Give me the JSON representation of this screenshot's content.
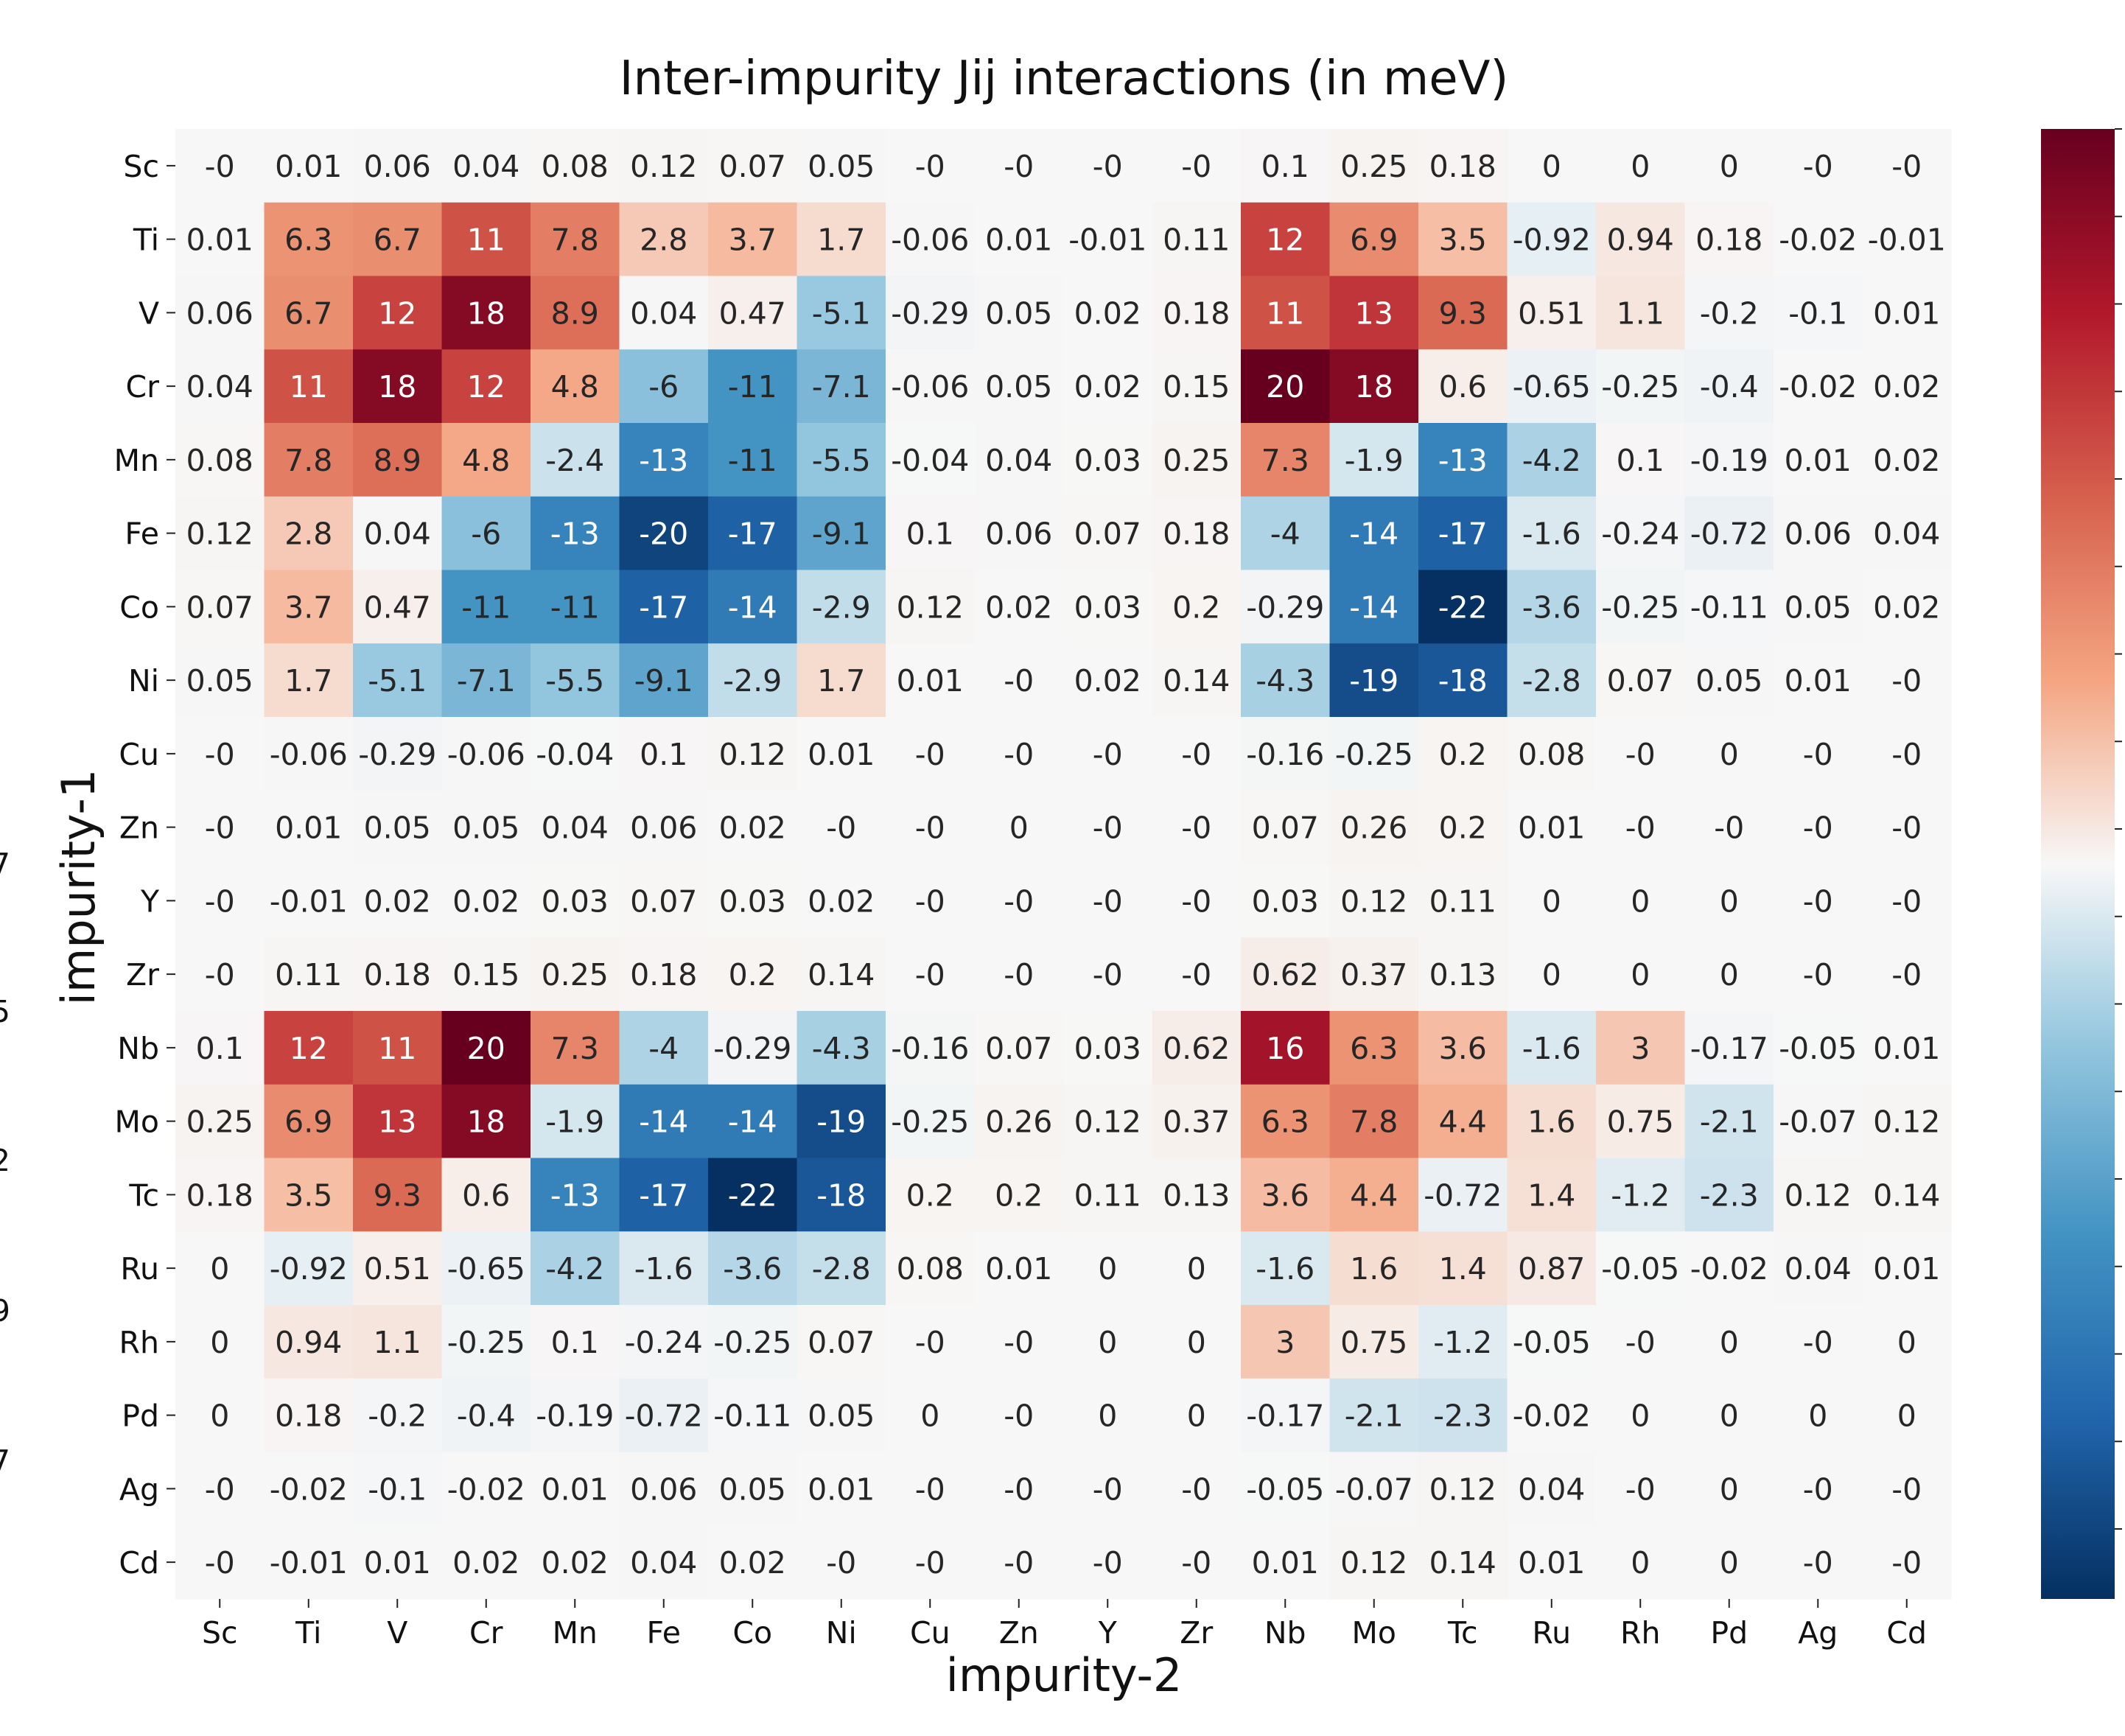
{
  "chart_data": {
    "type": "heatmap",
    "title": "Inter-impurity Jij interactions (in meV)",
    "xlabel": "impurity-2",
    "ylabel": "impurity-1",
    "x_categories": [
      "Sc",
      "Ti",
      "V",
      "Cr",
      "Mn",
      "Fe",
      "Co",
      "Ni",
      "Cu",
      "Zn",
      "Y",
      "Zr",
      "Nb",
      "Mo",
      "Tc",
      "Ru",
      "Rh",
      "Pd",
      "Ag",
      "Cd"
    ],
    "y_categories": [
      "Sc",
      "Ti",
      "V",
      "Cr",
      "Mn",
      "Fe",
      "Co",
      "Ni",
      "Cu",
      "Zn",
      "Y",
      "Zr",
      "Nb",
      "Mo",
      "Tc",
      "Ru",
      "Rh",
      "Pd",
      "Ag",
      "Cd"
    ],
    "colormap": "RdBu_r",
    "color_range": [
      -22,
      20
    ],
    "colorbar": "right, tick labels cropped",
    "cropped_tick_fragments": [
      "7",
      "5",
      "2",
      "9",
      "7"
    ],
    "values": [
      [
        "-0",
        "0.01",
        "0.06",
        "0.04",
        "0.08",
        "0.12",
        "0.07",
        "0.05",
        "-0",
        "-0",
        "-0",
        "-0",
        "0.1",
        "0.25",
        "0.18",
        "0",
        "0",
        "0",
        "-0",
        "-0"
      ],
      [
        "0.01",
        "6.3",
        "6.7",
        "11",
        "7.8",
        "2.8",
        "3.7",
        "1.7",
        "-0.06",
        "0.01",
        "-0.01",
        "0.11",
        "12",
        "6.9",
        "3.5",
        "-0.92",
        "0.94",
        "0.18",
        "-0.02",
        "-0.01"
      ],
      [
        "0.06",
        "6.7",
        "12",
        "18",
        "8.9",
        "0.04",
        "0.47",
        "-5.1",
        "-0.29",
        "0.05",
        "0.02",
        "0.18",
        "11",
        "13",
        "9.3",
        "0.51",
        "1.1",
        "-0.2",
        "-0.1",
        "0.01"
      ],
      [
        "0.04",
        "11",
        "18",
        "12",
        "4.8",
        "-6",
        "-11",
        "-7.1",
        "-0.06",
        "0.05",
        "0.02",
        "0.15",
        "20",
        "18",
        "0.6",
        "-0.65",
        "-0.25",
        "-0.4",
        "-0.02",
        "0.02"
      ],
      [
        "0.08",
        "7.8",
        "8.9",
        "4.8",
        "-2.4",
        "-13",
        "-11",
        "-5.5",
        "-0.04",
        "0.04",
        "0.03",
        "0.25",
        "7.3",
        "-1.9",
        "-13",
        "-4.2",
        "0.1",
        "-0.19",
        "0.01",
        "0.02"
      ],
      [
        "0.12",
        "2.8",
        "0.04",
        "-6",
        "-13",
        "-20",
        "-17",
        "-9.1",
        "0.1",
        "0.06",
        "0.07",
        "0.18",
        "-4",
        "-14",
        "-17",
        "-1.6",
        "-0.24",
        "-0.72",
        "0.06",
        "0.04"
      ],
      [
        "0.07",
        "3.7",
        "0.47",
        "-11",
        "-11",
        "-17",
        "-14",
        "-2.9",
        "0.12",
        "0.02",
        "0.03",
        "0.2",
        "-0.29",
        "-14",
        "-22",
        "-3.6",
        "-0.25",
        "-0.11",
        "0.05",
        "0.02"
      ],
      [
        "0.05",
        "1.7",
        "-5.1",
        "-7.1",
        "-5.5",
        "-9.1",
        "-2.9",
        "1.7",
        "0.01",
        "-0",
        "0.02",
        "0.14",
        "-4.3",
        "-19",
        "-18",
        "-2.8",
        "0.07",
        "0.05",
        "0.01",
        "-0"
      ],
      [
        "-0",
        "-0.06",
        "-0.29",
        "-0.06",
        "-0.04",
        "0.1",
        "0.12",
        "0.01",
        "-0",
        "-0",
        "-0",
        "-0",
        "-0.16",
        "-0.25",
        "0.2",
        "0.08",
        "-0",
        "0",
        "-0",
        "-0"
      ],
      [
        "-0",
        "0.01",
        "0.05",
        "0.05",
        "0.04",
        "0.06",
        "0.02",
        "-0",
        "-0",
        "0",
        "-0",
        "-0",
        "0.07",
        "0.26",
        "0.2",
        "0.01",
        "-0",
        "-0",
        "-0",
        "-0"
      ],
      [
        "-0",
        "-0.01",
        "0.02",
        "0.02",
        "0.03",
        "0.07",
        "0.03",
        "0.02",
        "-0",
        "-0",
        "-0",
        "-0",
        "0.03",
        "0.12",
        "0.11",
        "0",
        "0",
        "0",
        "-0",
        "-0"
      ],
      [
        "-0",
        "0.11",
        "0.18",
        "0.15",
        "0.25",
        "0.18",
        "0.2",
        "0.14",
        "-0",
        "-0",
        "-0",
        "-0",
        "0.62",
        "0.37",
        "0.13",
        "0",
        "0",
        "0",
        "-0",
        "-0"
      ],
      [
        "0.1",
        "12",
        "11",
        "20",
        "7.3",
        "-4",
        "-0.29",
        "-4.3",
        "-0.16",
        "0.07",
        "0.03",
        "0.62",
        "16",
        "6.3",
        "3.6",
        "-1.6",
        "3",
        "-0.17",
        "-0.05",
        "0.01"
      ],
      [
        "0.25",
        "6.9",
        "13",
        "18",
        "-1.9",
        "-14",
        "-14",
        "-19",
        "-0.25",
        "0.26",
        "0.12",
        "0.37",
        "6.3",
        "7.8",
        "4.4",
        "1.6",
        "0.75",
        "-2.1",
        "-0.07",
        "0.12"
      ],
      [
        "0.18",
        "3.5",
        "9.3",
        "0.6",
        "-13",
        "-17",
        "-22",
        "-18",
        "0.2",
        "0.2",
        "0.11",
        "0.13",
        "3.6",
        "4.4",
        "-0.72",
        "1.4",
        "-1.2",
        "-2.3",
        "0.12",
        "0.14"
      ],
      [
        "0",
        "-0.92",
        "0.51",
        "-0.65",
        "-4.2",
        "-1.6",
        "-3.6",
        "-2.8",
        "0.08",
        "0.01",
        "0",
        "0",
        "-1.6",
        "1.6",
        "1.4",
        "0.87",
        "-0.05",
        "-0.02",
        "0.04",
        "0.01"
      ],
      [
        "0",
        "0.94",
        "1.1",
        "-0.25",
        "0.1",
        "-0.24",
        "-0.25",
        "0.07",
        "-0",
        "-0",
        "0",
        "0",
        "3",
        "0.75",
        "-1.2",
        "-0.05",
        "-0",
        "0",
        "-0",
        "0"
      ],
      [
        "0",
        "0.18",
        "-0.2",
        "-0.4",
        "-0.19",
        "-0.72",
        "-0.11",
        "0.05",
        "0",
        "-0",
        "0",
        "0",
        "-0.17",
        "-2.1",
        "-2.3",
        "-0.02",
        "0",
        "0",
        "0",
        "0"
      ],
      [
        "-0",
        "-0.02",
        "-0.1",
        "-0.02",
        "0.01",
        "0.06",
        "0.05",
        "0.01",
        "-0",
        "-0",
        "-0",
        "-0",
        "-0.05",
        "-0.07",
        "0.12",
        "0.04",
        "-0",
        "0",
        "-0",
        "-0"
      ],
      [
        "-0",
        "-0.01",
        "0.01",
        "0.02",
        "0.02",
        "0.04",
        "0.02",
        "-0",
        "-0",
        "-0",
        "-0",
        "-0",
        "0.01",
        "0.12",
        "0.14",
        "0.01",
        "0",
        "0",
        "-0",
        "-0"
      ]
    ]
  }
}
